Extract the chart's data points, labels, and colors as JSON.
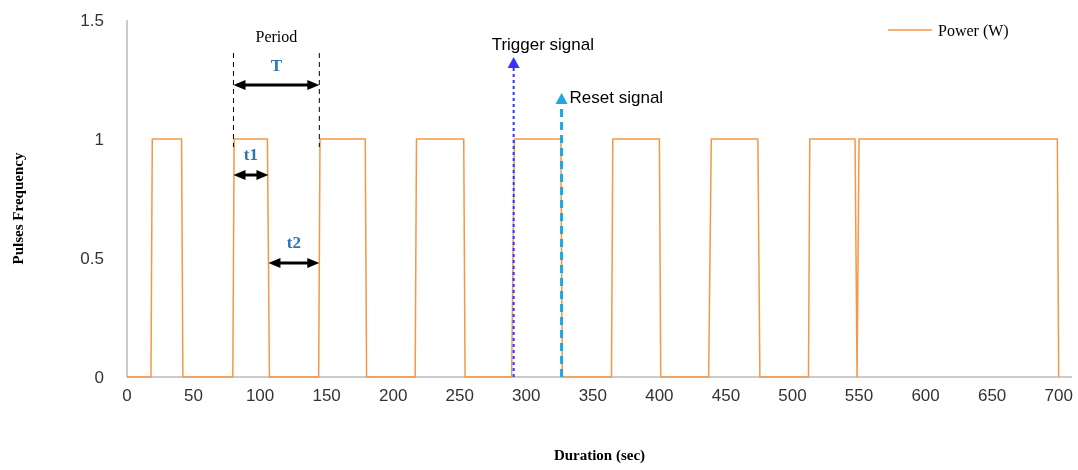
{
  "chart_data": {
    "type": "line",
    "xlabel": "Duration (sec)",
    "ylabel": "Pulses Frequency",
    "xlim": [
      0,
      710
    ],
    "xticks": [
      0,
      50,
      100,
      150,
      200,
      250,
      300,
      350,
      400,
      450,
      500,
      550,
      600,
      650,
      700
    ],
    "ylim": [
      0,
      1.5
    ],
    "yticks": [
      0,
      0.5,
      1,
      1.5
    ],
    "grid": false,
    "legend": "top right",
    "marker": "none",
    "line_style": "solid",
    "series": [
      {
        "name": "Power (W)",
        "color": "#f79646",
        "x": [
          0,
          18,
          19,
          41,
          42,
          79.5,
          80.5,
          105.5,
          107,
          144,
          145,
          179,
          180,
          216.5,
          217.5,
          253,
          254,
          289,
          291,
          326,
          327,
          364,
          365,
          400,
          401,
          437,
          439,
          474,
          475.5,
          512,
          513,
          547,
          548.5,
          550,
          699,
          700
        ],
        "values": [
          0,
          0,
          1,
          1,
          0,
          0,
          1,
          1,
          0,
          0,
          1,
          1,
          0,
          0,
          1,
          1,
          0,
          0,
          1,
          1,
          0,
          0,
          1,
          1,
          0,
          0,
          1,
          1,
          0,
          0,
          1,
          1,
          0,
          1,
          1,
          0
        ]
      }
    ],
    "ref_lines": [
      {
        "axis": "x",
        "value": 290.5,
        "label": "Trigger signal",
        "color": "#3333ff",
        "line_style": "dotted"
      },
      {
        "axis": "x",
        "value": 326.5,
        "label": "Reset signal",
        "color": "#1ea7e1",
        "line_style": "dashed"
      }
    ],
    "annotations": [
      "Period",
      "T",
      "t1",
      "t2"
    ]
  }
}
